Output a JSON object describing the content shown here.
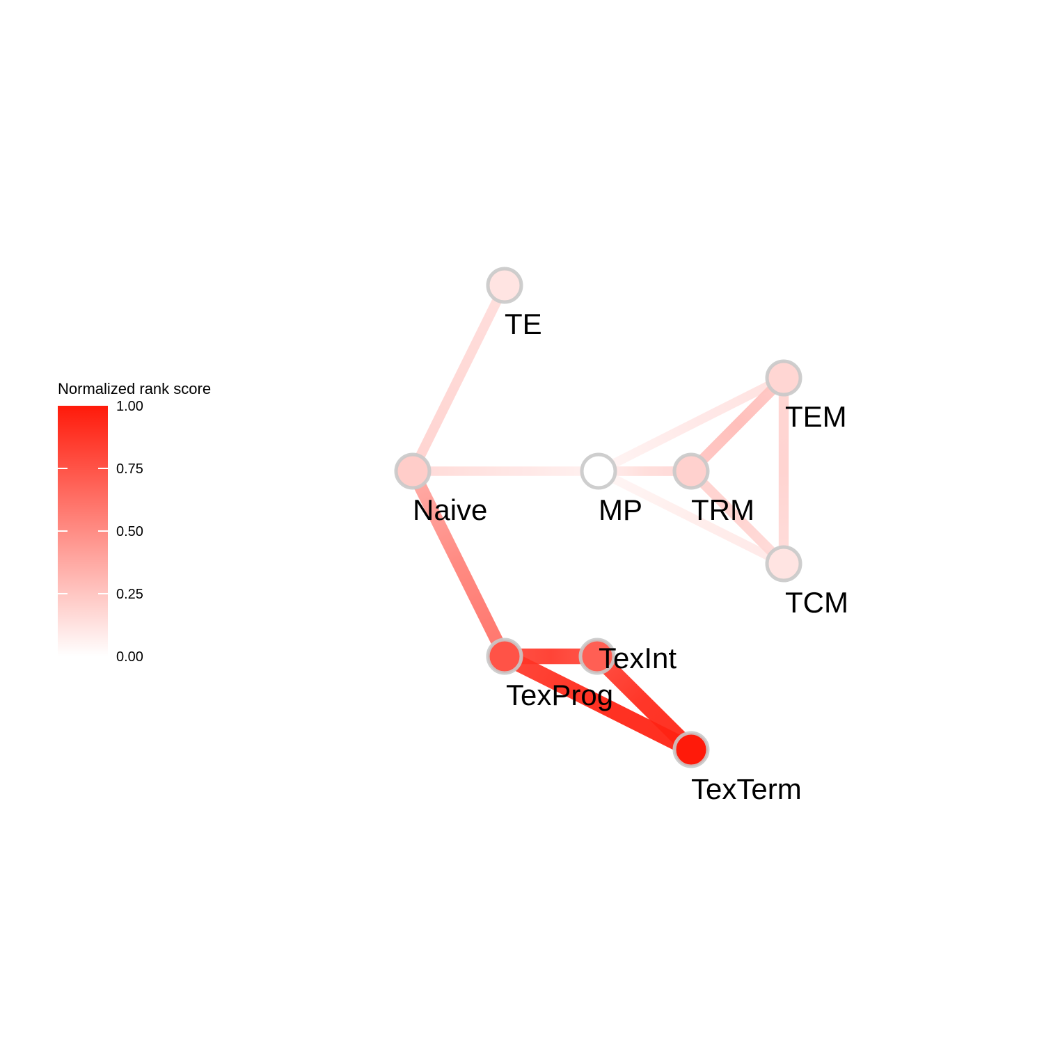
{
  "legend": {
    "title": "Normalized rank score",
    "ticks": [
      {
        "value": 1.0,
        "label": "1.00"
      },
      {
        "value": 0.75,
        "label": "0.75"
      },
      {
        "value": 0.5,
        "label": "0.50"
      },
      {
        "value": 0.25,
        "label": "0.25"
      },
      {
        "value": 0.0,
        "label": "0.00"
      }
    ],
    "colors": {
      "low": "#ffffff",
      "high": "#ff1a0a"
    }
  },
  "graph": {
    "nodes": [
      {
        "id": "TE",
        "label": "TE",
        "score": 0.12
      },
      {
        "id": "Naive",
        "label": "Naive",
        "score": 0.22
      },
      {
        "id": "MP",
        "label": "MP",
        "score": 0.0
      },
      {
        "id": "TRM",
        "label": "TRM",
        "score": 0.2
      },
      {
        "id": "TEM",
        "label": "TEM",
        "score": 0.18
      },
      {
        "id": "TCM",
        "label": "TCM",
        "score": 0.12
      },
      {
        "id": "TexProg",
        "label": "TexProg",
        "score": 0.75
      },
      {
        "id": "TexInt",
        "label": "TexInt",
        "score": 0.7
      },
      {
        "id": "TexTerm",
        "label": "TexTerm",
        "score": 1.0
      }
    ],
    "edges": [
      {
        "source": "Naive",
        "target": "TE",
        "score": 0.18
      },
      {
        "source": "Naive",
        "target": "MP",
        "score": 0.12
      },
      {
        "source": "Naive",
        "target": "TexProg",
        "score": 0.55
      },
      {
        "source": "MP",
        "target": "TEM",
        "score": 0.1
      },
      {
        "source": "MP",
        "target": "TRM",
        "score": 0.15
      },
      {
        "source": "MP",
        "target": "TCM",
        "score": 0.08
      },
      {
        "source": "TRM",
        "target": "TEM",
        "score": 0.3
      },
      {
        "source": "TRM",
        "target": "TCM",
        "score": 0.2
      },
      {
        "source": "TEM",
        "target": "TCM",
        "score": 0.2
      },
      {
        "source": "TexProg",
        "target": "TexInt",
        "score": 0.88
      },
      {
        "source": "TexProg",
        "target": "TexTerm",
        "score": 0.97
      },
      {
        "source": "TexInt",
        "target": "TexTerm",
        "score": 0.95
      }
    ]
  }
}
